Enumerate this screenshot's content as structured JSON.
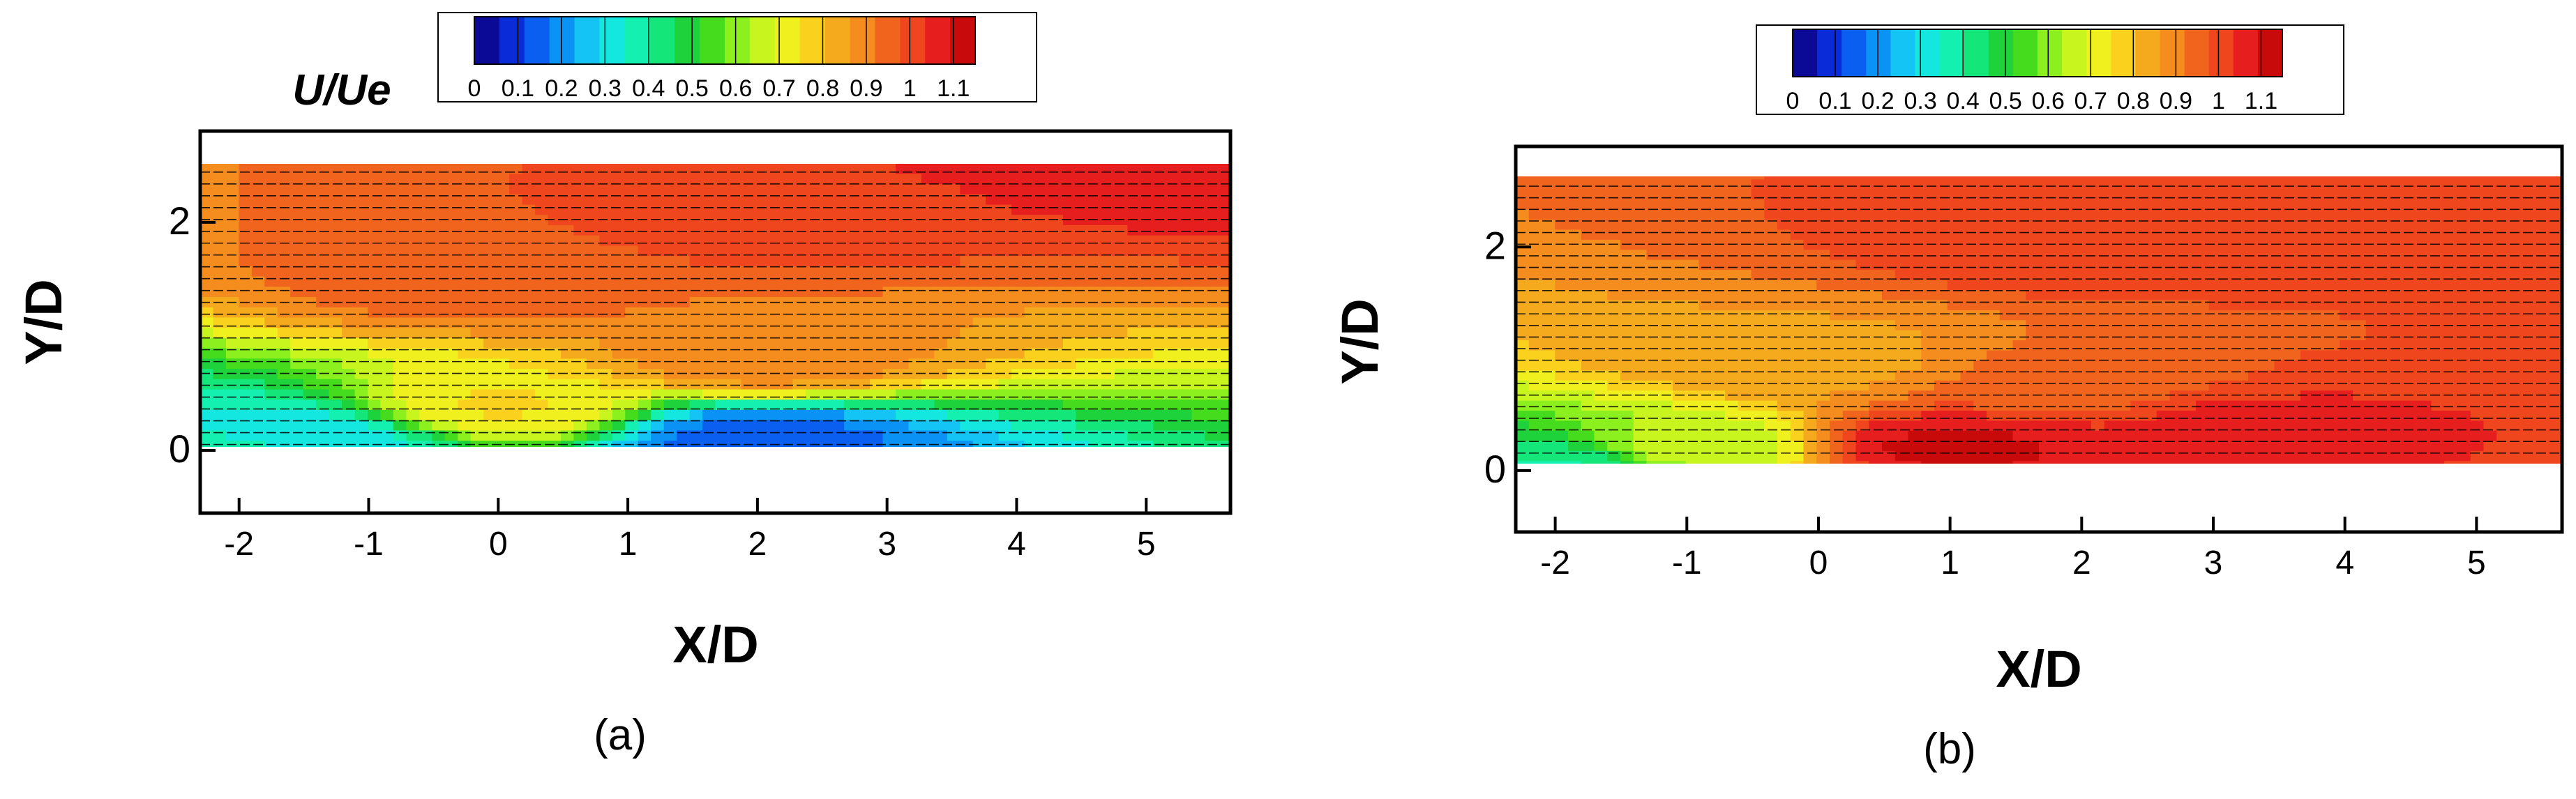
{
  "figure": {
    "panels": [
      {
        "caption": "(a)",
        "quantity_label": "U/Ue"
      },
      {
        "caption": "(b)",
        "quantity_label": ""
      }
    ]
  },
  "chart_data": [
    {
      "type": "heatmap",
      "title": "",
      "xlabel": "X/D",
      "ylabel": "Y/D",
      "xlim": [
        -2.3,
        5.65
      ],
      "ylim": [
        -0.55,
        2.8
      ],
      "x_ticks": [
        -2,
        -1,
        0,
        1,
        2,
        3,
        4,
        5
      ],
      "y_ticks": [
        0,
        2
      ],
      "colorbar": {
        "label": "U/Ue",
        "ticks": [
          "0",
          "0.1",
          "0.2",
          "0.3",
          "0.4",
          "0.5",
          "0.6",
          "0.7",
          "0.8",
          "0.9",
          "1",
          "1.1"
        ],
        "range": [
          0,
          1.15
        ],
        "colors": [
          "#0a0a96",
          "#0a2bd8",
          "#0a5ef0",
          "#0a93f5",
          "#14c4f5",
          "#14e6e0",
          "#14f0b0",
          "#14e67a",
          "#1ed23c",
          "#46dc1e",
          "#8cf01e",
          "#c8f51e",
          "#f0f01e",
          "#fad21e",
          "#f5aa1e",
          "#f58c1e",
          "#f0641e",
          "#f0461e",
          "#e61e1e",
          "#c80a0a"
        ]
      },
      "field_samples": [
        {
          "x": -2.0,
          "y": 0.05,
          "value": 0.35
        },
        {
          "x": -1.5,
          "y": 0.1,
          "value": 0.3
        },
        {
          "x": 2.0,
          "y": 0.1,
          "value": 0.15
        },
        {
          "x": 0.0,
          "y": 0.4,
          "value": 0.75
        },
        {
          "x": 2.0,
          "y": 0.8,
          "value": 0.9
        },
        {
          "x": 0.0,
          "y": 1.5,
          "value": 0.95
        },
        {
          "x": 2.0,
          "y": 2.0,
          "value": 1.0
        },
        {
          "x": 5.0,
          "y": 2.6,
          "value": 1.08
        }
      ],
      "geometry": {
        "ramp_start_x": -1.0,
        "ramp_end_x": 0.0,
        "wall_top_y": 0.0,
        "field_top_y": 2.7
      }
    },
    {
      "type": "heatmap",
      "title": "",
      "xlabel": "X/D",
      "ylabel": "Y/D",
      "xlim": [
        -2.3,
        5.65
      ],
      "ylim": [
        -0.55,
        2.9
      ],
      "x_ticks": [
        -2,
        -1,
        0,
        1,
        2,
        3,
        4,
        5
      ],
      "y_ticks": [
        0,
        2
      ],
      "colorbar": {
        "label": "",
        "ticks": [
          "0",
          "0.1",
          "0.2",
          "0.3",
          "0.4",
          "0.5",
          "0.6",
          "0.7",
          "0.8",
          "0.9",
          "1",
          "1.1"
        ],
        "range": [
          0,
          1.15
        ],
        "colors": [
          "#0a0a96",
          "#0a2bd8",
          "#0a5ef0",
          "#0a93f5",
          "#14c4f5",
          "#14e6e0",
          "#14f0b0",
          "#14e67a",
          "#1ed23c",
          "#46dc1e",
          "#8cf01e",
          "#c8f51e",
          "#f0f01e",
          "#fad21e",
          "#f5aa1e",
          "#f58c1e",
          "#f0641e",
          "#f0461e",
          "#e61e1e",
          "#c80a0a"
        ]
      },
      "field_samples": [
        {
          "x": -2.0,
          "y": 0.05,
          "value": 0.4
        },
        {
          "x": -1.0,
          "y": 0.2,
          "value": 0.65
        },
        {
          "x": 1.0,
          "y": 0.2,
          "value": 1.1
        },
        {
          "x": 3.2,
          "y": 0.4,
          "value": 1.05
        },
        {
          "x": 2.0,
          "y": 0.8,
          "value": 0.95
        },
        {
          "x": 0.0,
          "y": 1.0,
          "value": 0.85
        },
        {
          "x": 2.0,
          "y": 2.0,
          "value": 1.0
        },
        {
          "x": 5.0,
          "y": 2.5,
          "value": 1.03
        }
      ],
      "geometry": {
        "ramp_start_x": -1.0,
        "ramp_end_x": 0.0,
        "wall_top_y": 0.0,
        "field_top_y": 2.7
      }
    }
  ]
}
